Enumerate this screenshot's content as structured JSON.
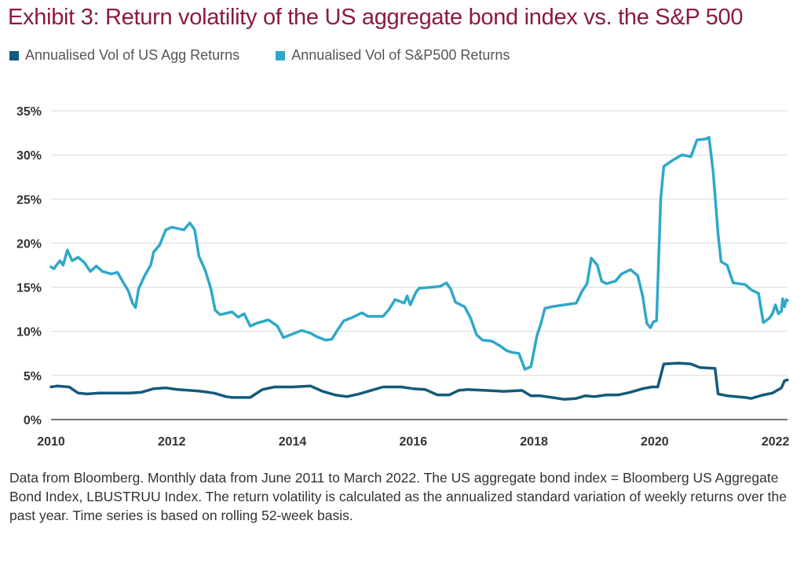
{
  "title": "Exhibit 3: Return volatility of the US aggregate bond index vs. the S&P 500",
  "note": "Data from Bloomberg. Monthly data from June 2011 to March 2022. The US aggregate bond index = Bloomberg US Aggregate Bond Index, LBUSTRUU Index. The return volatility is calculated as the annualized standard variation of weekly returns over the past year. Time series is based on rolling 52-week basis.",
  "chart_data": {
    "type": "line",
    "xlim": [
      2010,
      2022.2
    ],
    "ylim": [
      0,
      35
    ],
    "x_ticks": [
      "2010",
      "2012",
      "2014",
      "2016",
      "2018",
      "2020",
      "2022"
    ],
    "y_ticks": [
      "0%",
      "5%",
      "10%",
      "15%",
      "20%",
      "25%",
      "30%",
      "35%"
    ],
    "grid": "horizontal",
    "legend_position": "top-left",
    "series": [
      {
        "name": "Annualised Vol of US Agg Returns",
        "color": "#145a7a",
        "points": [
          [
            2010.0,
            3.7
          ],
          [
            2010.1,
            3.8
          ],
          [
            2010.3,
            3.7
          ],
          [
            2010.45,
            3.0
          ],
          [
            2010.6,
            2.9
          ],
          [
            2010.8,
            3.0
          ],
          [
            2011.0,
            3.0
          ],
          [
            2011.3,
            3.0
          ],
          [
            2011.5,
            3.1
          ],
          [
            2011.7,
            3.5
          ],
          [
            2011.9,
            3.6
          ],
          [
            2012.1,
            3.4
          ],
          [
            2012.3,
            3.3
          ],
          [
            2012.5,
            3.2
          ],
          [
            2012.7,
            3.0
          ],
          [
            2012.9,
            2.6
          ],
          [
            2013.0,
            2.5
          ],
          [
            2013.3,
            2.5
          ],
          [
            2013.5,
            3.4
          ],
          [
            2013.7,
            3.7
          ],
          [
            2014.0,
            3.7
          ],
          [
            2014.3,
            3.8
          ],
          [
            2014.5,
            3.2
          ],
          [
            2014.7,
            2.8
          ],
          [
            2014.9,
            2.6
          ],
          [
            2015.1,
            2.9
          ],
          [
            2015.3,
            3.3
          ],
          [
            2015.5,
            3.7
          ],
          [
            2015.8,
            3.7
          ],
          [
            2016.0,
            3.5
          ],
          [
            2016.2,
            3.4
          ],
          [
            2016.4,
            2.8
          ],
          [
            2016.6,
            2.8
          ],
          [
            2016.75,
            3.3
          ],
          [
            2016.9,
            3.4
          ],
          [
            2017.2,
            3.3
          ],
          [
            2017.5,
            3.2
          ],
          [
            2017.8,
            3.3
          ],
          [
            2017.95,
            2.7
          ],
          [
            2018.1,
            2.7
          ],
          [
            2018.3,
            2.5
          ],
          [
            2018.5,
            2.3
          ],
          [
            2018.7,
            2.4
          ],
          [
            2018.85,
            2.7
          ],
          [
            2019.0,
            2.6
          ],
          [
            2019.2,
            2.8
          ],
          [
            2019.4,
            2.8
          ],
          [
            2019.6,
            3.1
          ],
          [
            2019.8,
            3.5
          ],
          [
            2019.95,
            3.7
          ],
          [
            2020.05,
            3.7
          ],
          [
            2020.15,
            6.3
          ],
          [
            2020.4,
            6.4
          ],
          [
            2020.6,
            6.3
          ],
          [
            2020.75,
            5.9
          ],
          [
            2021.0,
            5.8
          ],
          [
            2021.05,
            2.9
          ],
          [
            2021.2,
            2.7
          ],
          [
            2021.5,
            2.5
          ],
          [
            2021.6,
            2.4
          ],
          [
            2021.8,
            2.8
          ],
          [
            2021.95,
            3.0
          ],
          [
            2022.1,
            3.6
          ],
          [
            2022.15,
            4.4
          ],
          [
            2022.2,
            4.5
          ]
        ]
      },
      {
        "name": "Annualised Vol of S&P500 Returns",
        "color": "#2ea8c9",
        "points": [
          [
            2010.0,
            17.3
          ],
          [
            2010.05,
            17.1
          ],
          [
            2010.1,
            17.6
          ],
          [
            2010.15,
            18.0
          ],
          [
            2010.2,
            17.5
          ],
          [
            2010.27,
            19.2
          ],
          [
            2010.35,
            18.0
          ],
          [
            2010.45,
            18.4
          ],
          [
            2010.55,
            17.8
          ],
          [
            2010.65,
            16.8
          ],
          [
            2010.75,
            17.4
          ],
          [
            2010.85,
            16.8
          ],
          [
            2011.0,
            16.5
          ],
          [
            2011.1,
            16.7
          ],
          [
            2011.2,
            15.5
          ],
          [
            2011.28,
            14.6
          ],
          [
            2011.35,
            13.2
          ],
          [
            2011.4,
            12.7
          ],
          [
            2011.45,
            14.8
          ],
          [
            2011.55,
            16.3
          ],
          [
            2011.65,
            17.5
          ],
          [
            2011.7,
            19.0
          ],
          [
            2011.8,
            19.8
          ],
          [
            2011.9,
            21.5
          ],
          [
            2012.0,
            21.8
          ],
          [
            2012.2,
            21.5
          ],
          [
            2012.3,
            22.3
          ],
          [
            2012.38,
            21.5
          ],
          [
            2012.45,
            18.5
          ],
          [
            2012.55,
            17.0
          ],
          [
            2012.65,
            14.8
          ],
          [
            2012.72,
            12.4
          ],
          [
            2012.8,
            11.9
          ],
          [
            2013.0,
            12.2
          ],
          [
            2013.1,
            11.6
          ],
          [
            2013.2,
            12.0
          ],
          [
            2013.3,
            10.6
          ],
          [
            2013.4,
            10.9
          ],
          [
            2013.6,
            11.3
          ],
          [
            2013.75,
            10.6
          ],
          [
            2013.85,
            9.3
          ],
          [
            2014.0,
            9.7
          ],
          [
            2014.15,
            10.1
          ],
          [
            2014.3,
            9.8
          ],
          [
            2014.4,
            9.4
          ],
          [
            2014.55,
            9.0
          ],
          [
            2014.65,
            9.1
          ],
          [
            2014.75,
            10.2
          ],
          [
            2014.85,
            11.2
          ],
          [
            2015.0,
            11.6
          ],
          [
            2015.15,
            12.1
          ],
          [
            2015.25,
            11.7
          ],
          [
            2015.5,
            11.7
          ],
          [
            2015.6,
            12.5
          ],
          [
            2015.7,
            13.6
          ],
          [
            2015.85,
            13.2
          ],
          [
            2015.9,
            14.0
          ],
          [
            2015.95,
            13.0
          ],
          [
            2016.05,
            14.5
          ],
          [
            2016.1,
            14.9
          ],
          [
            2016.3,
            15.0
          ],
          [
            2016.45,
            15.1
          ],
          [
            2016.55,
            15.5
          ],
          [
            2016.62,
            14.8
          ],
          [
            2016.7,
            13.3
          ],
          [
            2016.85,
            12.8
          ],
          [
            2016.95,
            11.5
          ],
          [
            2017.05,
            9.6
          ],
          [
            2017.15,
            9.0
          ],
          [
            2017.3,
            8.9
          ],
          [
            2017.45,
            8.3
          ],
          [
            2017.55,
            7.8
          ],
          [
            2017.65,
            7.6
          ],
          [
            2017.75,
            7.5
          ],
          [
            2017.85,
            5.7
          ],
          [
            2017.95,
            6.0
          ],
          [
            2018.05,
            9.5
          ],
          [
            2018.12,
            11.0
          ],
          [
            2018.18,
            12.6
          ],
          [
            2018.3,
            12.8
          ],
          [
            2018.5,
            13.0
          ],
          [
            2018.7,
            13.2
          ],
          [
            2018.8,
            14.6
          ],
          [
            2018.88,
            15.4
          ],
          [
            2018.95,
            18.3
          ],
          [
            2019.05,
            17.5
          ],
          [
            2019.12,
            15.7
          ],
          [
            2019.2,
            15.4
          ],
          [
            2019.35,
            15.7
          ],
          [
            2019.45,
            16.5
          ],
          [
            2019.6,
            17.0
          ],
          [
            2019.72,
            16.3
          ],
          [
            2019.8,
            14.0
          ],
          [
            2019.87,
            10.9
          ],
          [
            2019.93,
            10.4
          ],
          [
            2019.98,
            11.1
          ],
          [
            2020.03,
            11.2
          ],
          [
            2020.1,
            25.0
          ],
          [
            2020.15,
            28.7
          ],
          [
            2020.3,
            29.4
          ],
          [
            2020.45,
            30.0
          ],
          [
            2020.6,
            29.8
          ],
          [
            2020.7,
            31.7
          ],
          [
            2020.85,
            31.8
          ],
          [
            2020.9,
            32.0
          ],
          [
            2020.97,
            28.0
          ],
          [
            2021.05,
            21.0
          ],
          [
            2021.1,
            17.9
          ],
          [
            2021.2,
            17.5
          ],
          [
            2021.3,
            15.5
          ],
          [
            2021.5,
            15.3
          ],
          [
            2021.6,
            14.7
          ],
          [
            2021.72,
            14.3
          ],
          [
            2021.8,
            11.0
          ],
          [
            2021.9,
            11.5
          ],
          [
            2021.95,
            12.0
          ],
          [
            2022.0,
            13.0
          ],
          [
            2022.05,
            12.0
          ],
          [
            2022.1,
            12.3
          ],
          [
            2022.12,
            13.7
          ],
          [
            2022.15,
            12.8
          ],
          [
            2022.18,
            13.6
          ],
          [
            2022.2,
            13.5
          ]
        ]
      }
    ]
  }
}
